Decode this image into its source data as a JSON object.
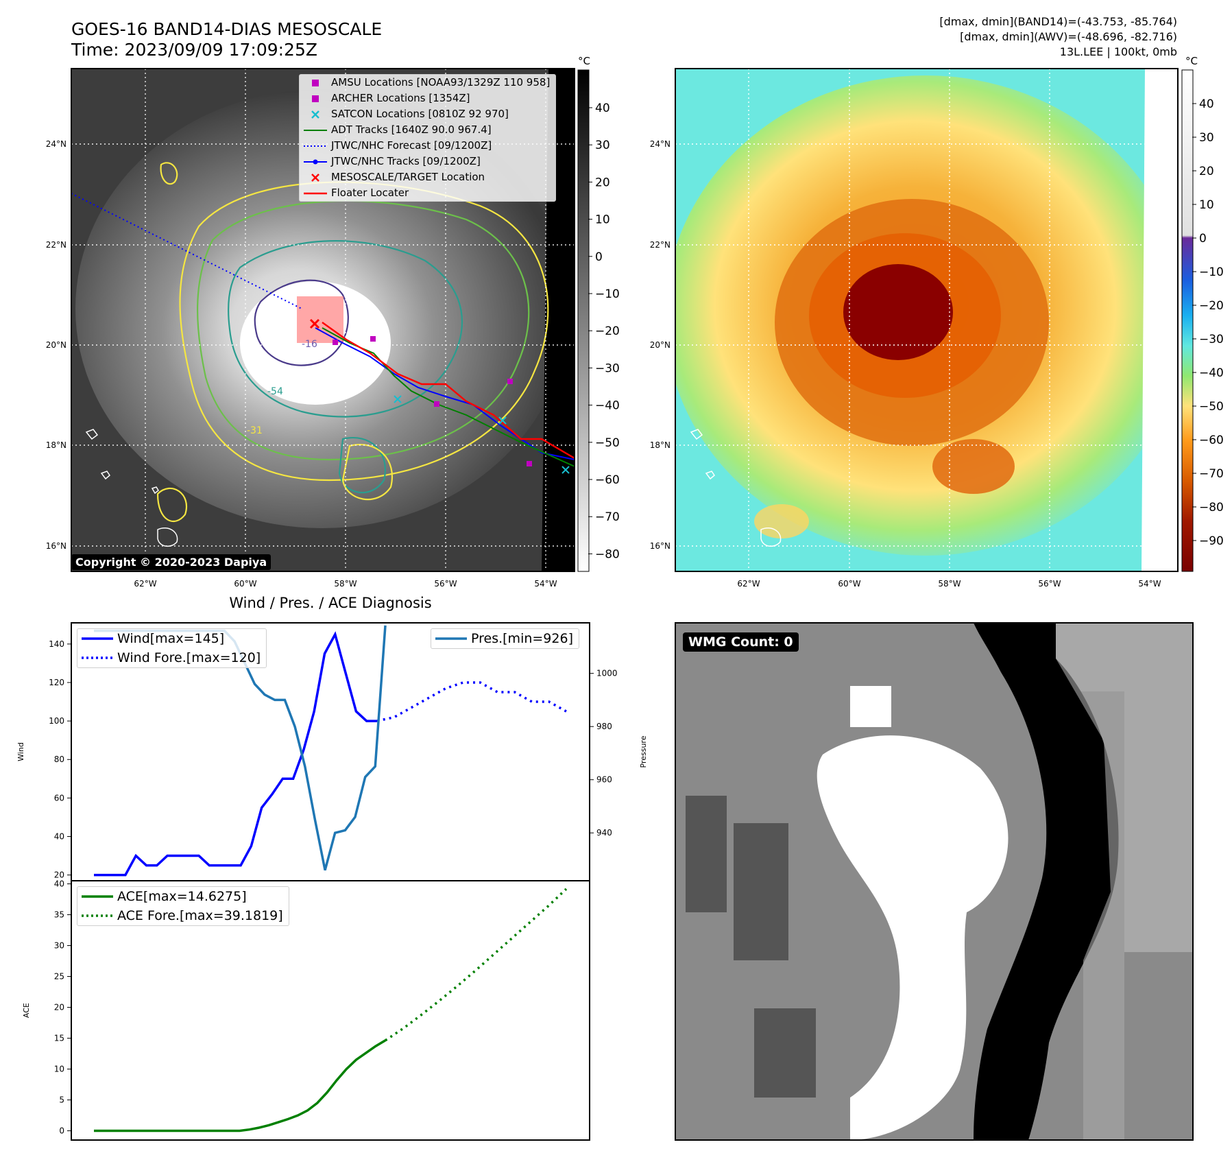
{
  "header": {
    "title_line1": "GOES-16 BAND14-DIAS MESOSCALE",
    "title_line2": "Time: 2023/09/09 17:09:25Z",
    "info_line1": "[dmax, dmin](BAND14)=(-43.753, -85.764)",
    "info_line2": "[dmax, dmin](AWV)=(-48.696, -82.716)",
    "info_line3": "13L.LEE | 100kt, 0mb"
  },
  "copyright": "Copyright © 2020-2023 Dapiya",
  "wmg_label": "WMG Count: 0",
  "colors": {
    "wind": "#0000ff",
    "pressure": "#1f77b4",
    "ace": "#008000",
    "adt": "#008000",
    "satcon": "#17becf",
    "amsu": "#c000c0",
    "mesoscale": "#ff0000",
    "contour_yellow": "#f5e642",
    "contour_green": "#6cc04a",
    "contour_teal": "#2a9d8f"
  },
  "map_panel": {
    "colorbar_unit": "°C",
    "lon_labels": [
      "62°W",
      "60°W",
      "58°W",
      "56°W",
      "54°W"
    ],
    "lat_labels": [
      "24°N",
      "22°N",
      "20°N",
      "18°N",
      "16°N"
    ],
    "left_cbar_ticks": [
      "40",
      "30",
      "20",
      "10",
      "0",
      "−10",
      "−20",
      "−30",
      "−40",
      "−50",
      "−60",
      "−70",
      "−80"
    ],
    "right_cbar_ticks": [
      "40",
      "30",
      "20",
      "10",
      "0",
      "−10",
      "−20",
      "−30",
      "−40",
      "−50",
      "−60",
      "−70",
      "−80",
      "−90"
    ],
    "contour_labels": [
      "-16",
      "-54",
      "-31"
    ],
    "legend": [
      {
        "label": "AMSU Locations [NOAA93/1329Z 110 958]",
        "marker": "square",
        "color": "#c000c0"
      },
      {
        "label": "ARCHER Locations [1354Z]",
        "marker": "square",
        "color": "#c000c0"
      },
      {
        "label": "SATCON Locations [0810Z 92 970]",
        "marker": "x",
        "color": "#17becf"
      },
      {
        "label": "ADT Tracks [1640Z 90.0 967.4]",
        "marker": "line",
        "color": "#008000"
      },
      {
        "label": "JTWC/NHC Forecast [09/1200Z]",
        "marker": "dotted",
        "color": "#0000ff"
      },
      {
        "label": "JTWC/NHC Tracks [09/1200Z]",
        "marker": "line-dot",
        "color": "#0000ff"
      },
      {
        "label": "MESOSCALE/TARGET Location",
        "marker": "x",
        "color": "#ff0000"
      },
      {
        "label": "Floater Locater",
        "marker": "line",
        "color": "#ff0000"
      }
    ]
  },
  "chart_data": [
    {
      "type": "line",
      "title": "Wind / Pres. / ACE Diagnosis",
      "ylabel": "Wind",
      "ylabel_right": "Pressure",
      "ylim": [
        17,
        151
      ],
      "ylim_right": [
        922,
        1019
      ],
      "yticks": [
        20,
        40,
        60,
        80,
        100,
        120,
        140
      ],
      "yticks_right": [
        940,
        960,
        980,
        1000
      ],
      "series": [
        {
          "name": "Wind[max=145]",
          "style": "solid",
          "color": "#0000ff",
          "values": [
            20,
            20,
            20,
            20,
            30,
            25,
            25,
            30,
            30,
            30,
            30,
            25,
            25,
            25,
            25,
            35,
            55,
            62,
            70,
            70,
            85,
            105,
            135,
            145,
            125,
            105,
            100,
            100
          ]
        },
        {
          "name": "Wind Fore.[max=120]",
          "style": "dotted",
          "color": "#0000ff",
          "values": [
            100,
            102,
            107,
            112,
            117,
            120,
            120,
            115,
            115,
            110,
            110,
            105
          ]
        },
        {
          "name": "Pres.[min=926]",
          "style": "solid",
          "color": "#1f77b4",
          "axis": "right",
          "values": [
            1016,
            1016,
            1016,
            1016,
            1016,
            1016,
            1016,
            1016,
            1016,
            1016,
            1016,
            1016,
            1016,
            1016,
            1012,
            1004,
            996,
            992,
            990,
            990,
            980,
            965,
            945,
            926,
            940,
            941,
            946,
            961,
            965,
            1018
          ]
        }
      ]
    },
    {
      "type": "line",
      "ylabel": "ACE",
      "ylim": [
        -1.5,
        40.5
      ],
      "yticks": [
        0,
        5,
        10,
        15,
        20,
        25,
        30,
        35,
        40
      ],
      "series": [
        {
          "name": "ACE[max=14.6275]",
          "style": "solid",
          "color": "#008000",
          "values": [
            0,
            0,
            0,
            0,
            0,
            0,
            0,
            0,
            0,
            0,
            0,
            0,
            0,
            0,
            0,
            0,
            0.2,
            0.5,
            0.9,
            1.4,
            1.9,
            2.5,
            3.3,
            4.5,
            6.2,
            8.2,
            10.0,
            11.5,
            12.6,
            13.7,
            14.63
          ]
        },
        {
          "name": "ACE Fore.[max=39.1819]",
          "style": "dotted",
          "color": "#008000",
          "values": [
            14.63,
            16.6,
            18.8,
            21.1,
            23.5,
            26.0,
            28.6,
            31.2,
            33.8,
            36.4,
            39.18
          ]
        }
      ]
    }
  ]
}
